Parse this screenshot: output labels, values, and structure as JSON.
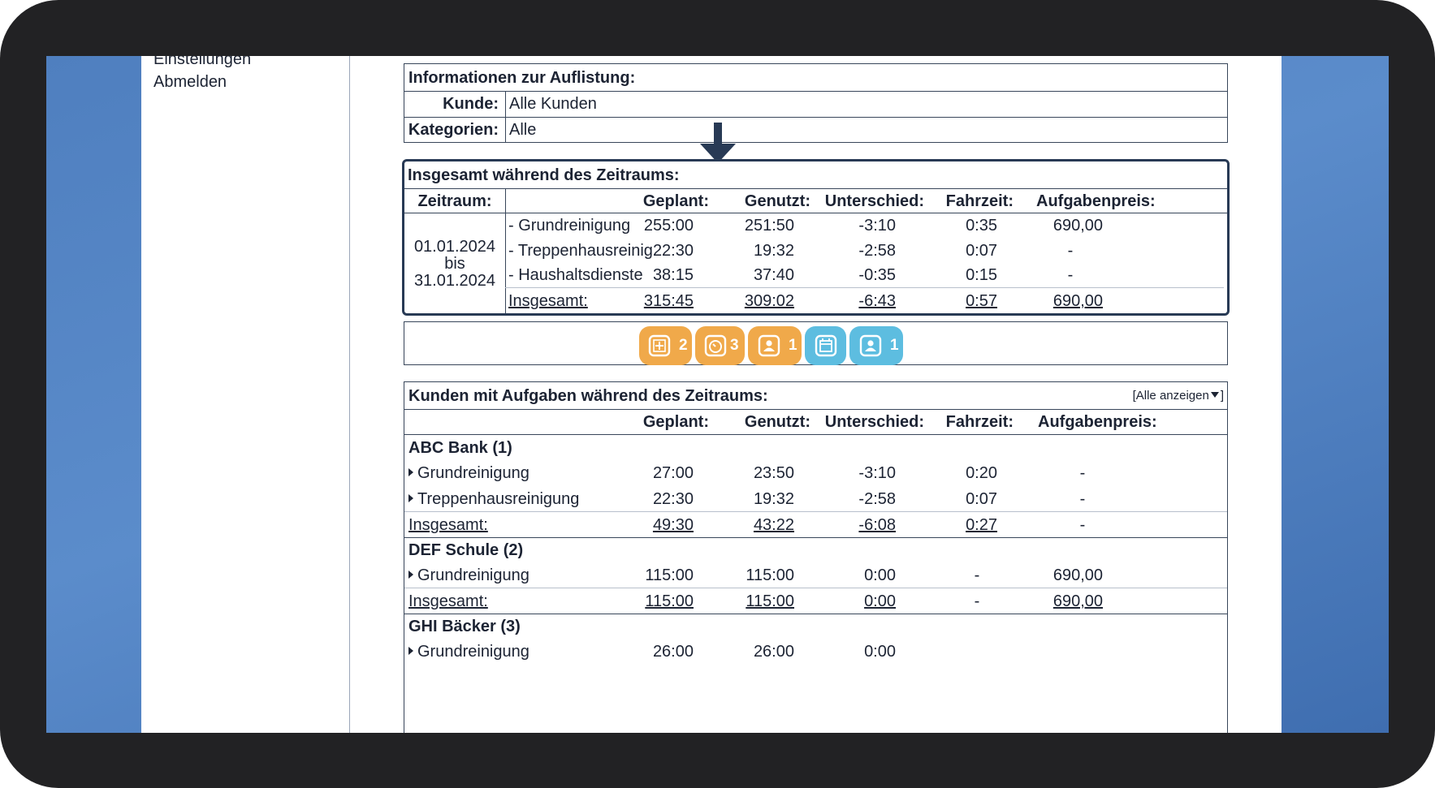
{
  "nav": {
    "settings": "Einstellungen",
    "logout": "Abmelden"
  },
  "info": {
    "title": "Informationen zur Auflistung:",
    "customer_label": "Kunde:",
    "customer_value": "Alle Kunden",
    "categories_label": "Kategorien:",
    "categories_value": "Alle"
  },
  "summary": {
    "title": "Insgesamt während des Zeitraums:",
    "headers": {
      "period": "Zeitraum:",
      "planned": "Geplant:",
      "used": "Genutzt:",
      "diff": "Unterschied:",
      "travel": "Fahrzeit:",
      "price": "Aufgabenpreis:"
    },
    "period": {
      "from": "01.01.2024",
      "bis": "bis",
      "to": "31.01.2024"
    },
    "rows": [
      {
        "name": "- Grundreinigung",
        "planned": "255:00",
        "used": "251:50",
        "diff": "-3:10",
        "travel": "0:35",
        "price": "690,00"
      },
      {
        "name": "- Treppenhausreinig",
        "planned": "22:30",
        "used": "19:32",
        "diff": "-2:58",
        "travel": "0:07",
        "price": "-"
      },
      {
        "name": "- Haushaltsdienste",
        "planned": "38:15",
        "used": "37:40",
        "diff": "-0:35",
        "travel": "0:15",
        "price": "-"
      }
    ],
    "total": {
      "name": "Insgesamt:",
      "planned": "315:45",
      "used": "309:02",
      "diff": "-6:43",
      "travel": "0:57",
      "price": "690,00"
    }
  },
  "badges": [
    {
      "icon": "add-task-icon",
      "count": "2",
      "color": "#f0a94a"
    },
    {
      "icon": "clock-icon",
      "count": "3",
      "color": "#f0a94a"
    },
    {
      "icon": "person-icon",
      "count": "1",
      "color": "#f0a94a"
    },
    {
      "icon": "calendar-icon",
      "count": "",
      "color": "#5dbde0"
    },
    {
      "icon": "person-icon",
      "count": "1",
      "color": "#5dbde0"
    }
  ],
  "customers": {
    "title": "Kunden mit Aufgaben während des Zeitraums:",
    "show_all": "[Alle anzeigen",
    "show_all_close": "]",
    "headers": {
      "planned": "Geplant:",
      "used": "Genutzt:",
      "diff": "Unterschied:",
      "travel": "Fahrzeit:",
      "price": "Aufgabenpreis:"
    },
    "groups": [
      {
        "name": "ABC Bank (1)",
        "tasks": [
          {
            "name": "Grundreinigung",
            "planned": "27:00",
            "used": "23:50",
            "diff": "-3:10",
            "travel": "0:20",
            "price": "-"
          },
          {
            "name": "Treppenhausreinigung",
            "planned": "22:30",
            "used": "19:32",
            "diff": "-2:58",
            "travel": "0:07",
            "price": "-"
          }
        ],
        "total": {
          "name": "Insgesamt:",
          "planned": "49:30",
          "used": "43:22",
          "diff": "-6:08",
          "travel": "0:27",
          "price": "-"
        }
      },
      {
        "name": "DEF Schule (2)",
        "tasks": [
          {
            "name": "Grundreinigung",
            "planned": "115:00",
            "used": "115:00",
            "diff": "0:00",
            "travel": "-",
            "price": "690,00"
          }
        ],
        "total": {
          "name": "Insgesamt:",
          "planned": "115:00",
          "used": "115:00",
          "diff": "0:00",
          "travel": "-",
          "price": "690,00"
        }
      },
      {
        "name": "GHI Bäcker (3)",
        "tasks": [
          {
            "name": "Grundreinigung",
            "planned": "26:00",
            "used": "26:00",
            "diff": "0:00",
            "travel": "",
            "price": ""
          }
        ]
      }
    ]
  }
}
